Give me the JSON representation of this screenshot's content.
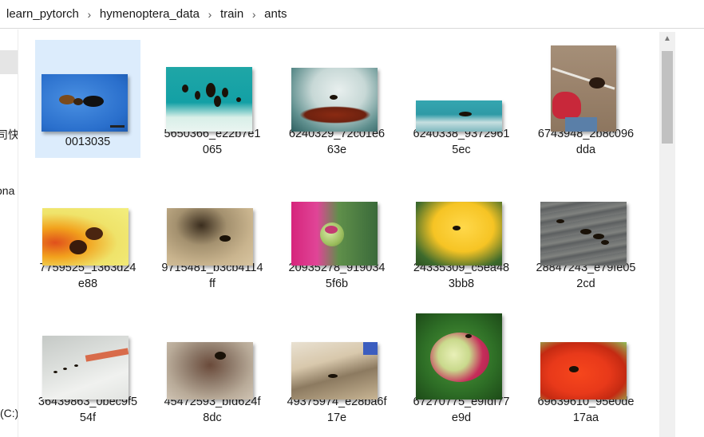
{
  "breadcrumb": [
    "learn_pytorch",
    "hymenoptera_data",
    "train",
    "ants"
  ],
  "breadcrumb_separator": "›",
  "nav_pane": {
    "partial_labels": [
      "司快",
      "ona",
      "(C:)"
    ]
  },
  "files": [
    {
      "name": "0013035",
      "selected": true
    },
    {
      "name": "5650366_e22b7e1065"
    },
    {
      "name": "6240329_72c01e663e"
    },
    {
      "name": "6240338_93729615ec"
    },
    {
      "name": "6743948_2b8c096dda"
    },
    {
      "name": "7759525_1363d24e88"
    },
    {
      "name": "9715481_b3cb4114ff"
    },
    {
      "name": "20935278_9190345f6b"
    },
    {
      "name": "24335309_c5ea483bb8"
    },
    {
      "name": "28847243_e79fe052cd"
    },
    {
      "name": "36439863_0bec9f554f"
    },
    {
      "name": "45472593_bfd624f8dc"
    },
    {
      "name": "49375974_e28ba6f17e"
    },
    {
      "name": "67270775_e9fdf77e9d"
    },
    {
      "name": "69639610_95e0de17aa"
    }
  ],
  "scrollbar": {
    "up_arrow": "▲"
  },
  "colors": {
    "selection": "#dcecfc",
    "nav_selection": "#e5e5e5"
  }
}
